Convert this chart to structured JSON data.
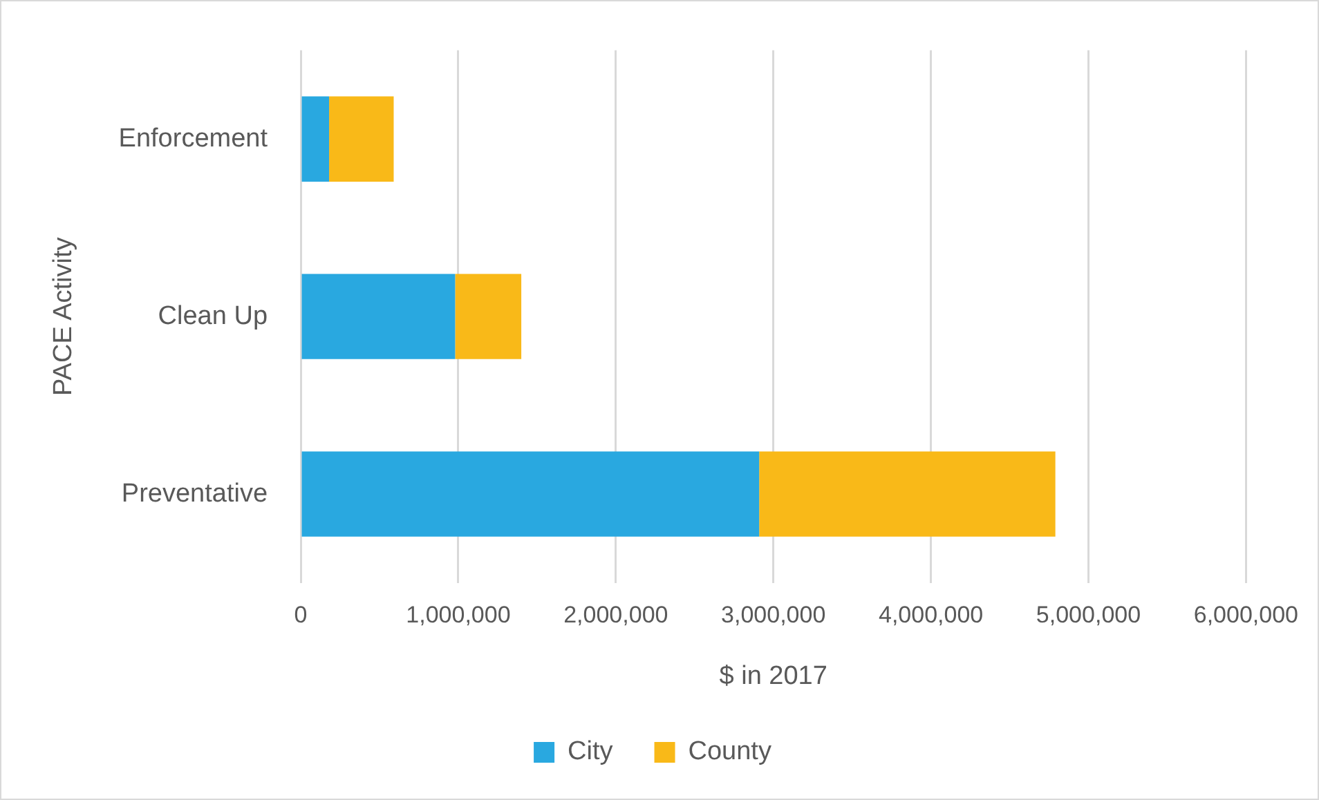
{
  "chart_data": {
    "type": "bar",
    "orientation": "horizontal",
    "stacked": true,
    "xlabel": "$ in 2017",
    "ylabel": "PACE Activity",
    "categories": [
      "Enforcement",
      "Clean Up",
      "Preventative"
    ],
    "series": [
      {
        "name": "City",
        "color": "#29a8e0",
        "values": [
          180000,
          980000,
          2910000
        ]
      },
      {
        "name": "County",
        "color": "#f9b918",
        "values": [
          410000,
          420000,
          1880000
        ]
      }
    ],
    "xlim": [
      0,
      6000000
    ],
    "xticks": [
      0,
      {
        "value": 1000000,
        "label": "1,000,000"
      },
      {
        "value": 2000000,
        "label": "2,000,000"
      },
      {
        "value": 3000000,
        "label": "3,000,000"
      },
      {
        "value": 4000000,
        "label": "4,000,000"
      },
      {
        "value": 5000000,
        "label": "5,000,000"
      },
      {
        "value": 6000000,
        "label": "6,000,000"
      }
    ],
    "grid": "x",
    "legend": "bottom"
  }
}
